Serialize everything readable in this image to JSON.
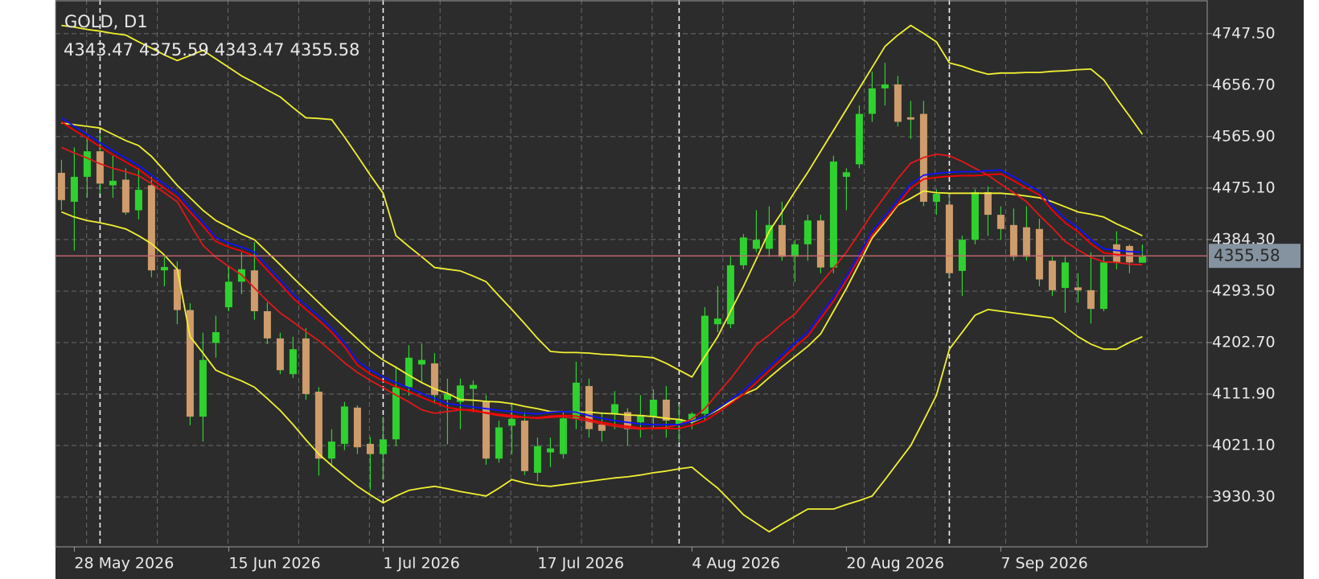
{
  "chart_data": {
    "type": "candlestick",
    "title": "GOLD, D1",
    "categories": [
      null,
      "28 May 2026",
      null,
      null,
      null,
      null,
      null,
      null,
      null,
      null,
      null,
      null,
      null,
      "15 Jun 2026",
      null,
      null,
      null,
      null,
      null,
      null,
      null,
      null,
      null,
      null,
      null,
      "1 Jul 2026",
      null,
      null,
      null,
      null,
      null,
      null,
      null,
      null,
      null,
      null,
      null,
      "17 Jul 2026",
      null,
      null,
      null,
      null,
      null,
      null,
      null,
      null,
      null,
      null,
      null,
      "4 Aug 2026",
      null,
      null,
      null,
      null,
      null,
      null,
      null,
      null,
      null,
      null,
      null,
      "20 Aug 2026",
      null,
      null,
      null,
      null,
      null,
      null,
      null,
      null,
      null,
      null,
      null,
      "7 Sep 2026",
      null,
      null,
      null,
      null,
      null,
      null,
      null,
      null,
      null,
      null,
      null
    ],
    "open": [
      4502,
      4451,
      4495,
      4540,
      4480,
      4490,
      4436,
      4480,
      4330,
      4332,
      4260,
      4072,
      4202,
      4265,
      4310,
      4330,
      4258,
      4210,
      4147,
      4210,
      4116,
      3998,
      4024,
      4088,
      4024,
      4006,
      4032,
      4124,
      4164,
      4166,
      4102,
      4098,
      4121,
      4098,
      3998,
      4056,
      4065,
      3973,
      4009,
      4006,
      4069,
      4126,
      4058,
      4077,
      4080,
      4062,
      4072,
      4102,
      4058,
      4065,
      4077,
      4235,
      4235,
      4339,
      4368,
      4368,
      4410,
      4354,
      4376,
      4418,
      4335,
      4495,
      4517,
      4606,
      4651,
      4658,
      4600,
      4606,
      4451,
      4446,
      4329,
      4384,
      4468,
      4428,
      4410,
      4406,
      4403,
      4347,
      4299,
      4300,
      4295,
      4262,
      4376,
      4373,
      4343.47
    ],
    "high": [
      4525,
      4547,
      4562,
      4570,
      4532,
      4510,
      4510,
      4495,
      4354,
      4346,
      4272,
      4220,
      4250,
      4339,
      4362,
      4380,
      4273,
      4220,
      4213,
      4228,
      4124,
      4050,
      4098,
      4092,
      4036,
      4072,
      4161,
      4198,
      4201,
      4184,
      4139,
      4139,
      4136,
      4110,
      4065,
      4094,
      4080,
      4035,
      4035,
      4080,
      4169,
      4139,
      4080,
      4117,
      4087,
      4110,
      4120,
      4126,
      4094,
      4080,
      4265,
      4302,
      4354,
      4394,
      4436,
      4443,
      4451,
      4384,
      4428,
      4428,
      4532,
      4510,
      4621,
      4681,
      4696,
      4673,
      4629,
      4629,
      4473,
      4466,
      4391,
      4473,
      4478,
      4443,
      4439,
      4443,
      4421,
      4354,
      4354,
      4325,
      4362,
      4354,
      4399,
      4376,
      4375.59
    ],
    "low": [
      4436,
      4365,
      4458,
      4465,
      4458,
      4428,
      4420,
      4318,
      4302,
      4235,
      4057,
      4028,
      4176,
      4258,
      4288,
      4243,
      4200,
      4147,
      4140,
      4102,
      3968,
      3983,
      4013,
      4006,
      3943,
      3961,
      4020,
      4109,
      4132,
      4095,
      4023,
      4050,
      4080,
      3987,
      3991,
      4006,
      3969,
      3958,
      3983,
      3998,
      4050,
      4035,
      4028,
      4050,
      4021,
      4035,
      4050,
      4035,
      4028,
      4050,
      4065,
      4221,
      4228,
      4332,
      4362,
      4354,
      4347,
      4310,
      4347,
      4325,
      4325,
      4436,
      4510,
      4592,
      4621,
      4584,
      4562,
      4443,
      4428,
      4317,
      4285,
      4376,
      4391,
      4384,
      4347,
      4347,
      4302,
      4285,
      4255,
      4273,
      4236,
      4258,
      4332,
      4325,
      4343.47
    ],
    "close": [
      4454,
      4495,
      4540,
      4483,
      4488,
      4432,
      4472,
      4330,
      4336,
      4260,
      4072,
      4172,
      4221,
      4310,
      4332,
      4258,
      4210,
      4154,
      4191,
      4112,
      3998,
      4028,
      4090,
      4018,
      4006,
      4032,
      4124,
      4176,
      4172,
      4110,
      4112,
      4127,
      4128,
      3998,
      4053,
      4068,
      3976,
      4020,
      4016,
      4069,
      4132,
      4050,
      4047,
      4094,
      4050,
      4075,
      4102,
      4065,
      4068,
      4077,
      4250,
      4245,
      4339,
      4388,
      4384,
      4410,
      4354,
      4376,
      4418,
      4335,
      4522,
      4503,
      4606,
      4651,
      4658,
      4592,
      4596,
      4451,
      4465,
      4325,
      4384,
      4468,
      4428,
      4403,
      4354,
      4354,
      4314,
      4295,
      4344,
      4295,
      4262,
      4344,
      4344,
      4344,
      4355.58
    ],
    "up_color": "#2fd12f",
    "down_color": "#cf9c6c",
    "wick_color": "#2fd12f",
    "price_line_color": "#c86a72",
    "series": [
      {
        "color": "#f0f032",
        "values": [
          4762,
          4759,
          4755,
          4752,
          4748,
          4745,
          4733,
          4722,
          4710,
          4700,
          4709,
          4718,
          4703,
          4688,
          4673,
          4661,
          4648,
          4636,
          4617,
          4599,
          4598,
          4596,
          4565,
          4532,
          4498,
          4466,
          4391,
          4372,
          4354,
          4335,
          4332,
          4329,
          4320,
          4310,
          4285,
          4261,
          4236,
          4210,
          4187,
          4185,
          4185,
          4184,
          4182,
          4181,
          4179,
          4178,
          4176,
          4166,
          4154,
          4142,
          4178,
          4213,
          4258,
          4302,
          4350,
          4399,
          4433,
          4469,
          4503,
          4540,
          4577,
          4614,
          4651,
          4688,
          4725,
          4745,
          4762,
          4748,
          4733,
          4696,
          4690,
          4682,
          4676,
          4678,
          4678,
          4679,
          4679,
          4681,
          4682,
          4684,
          4685,
          4666,
          4633,
          4602,
          4570
        ]
      },
      {
        "color": "#f0f032",
        "values": [
          4433,
          4424,
          4418,
          4414,
          4409,
          4403,
          4391,
          4377,
          4357,
          4332,
          4213,
          4184,
          4154,
          4144,
          4135,
          4124,
          4104,
          4083,
          4058,
          4031,
          4006,
          3986,
          3967,
          3949,
          3934,
          3920,
          3932,
          3942,
          3946,
          3949,
          3945,
          3940,
          3936,
          3932,
          3946,
          3961,
          3955,
          3951,
          3949,
          3952,
          3955,
          3958,
          3961,
          3964,
          3966,
          3969,
          3973,
          3976,
          3980,
          3983,
          3964,
          3946,
          3923,
          3899,
          3884,
          3869,
          3883,
          3896,
          3909,
          3909,
          3909,
          3917,
          3924,
          3932,
          3961,
          3991,
          4021,
          4065,
          4110,
          4191,
          4221,
          4251,
          4261,
          4258,
          4255,
          4252,
          4249,
          4246,
          4230,
          4213,
          4200,
          4191,
          4191,
          4203,
          4213
        ]
      },
      {
        "color": "#f0f032",
        "values": [
          4590,
          4587,
          4584,
          4581,
          4570,
          4559,
          4550,
          4531,
          4506,
          4480,
          4458,
          4436,
          4418,
          4406,
          4394,
          4384,
          4362,
          4340,
          4317,
          4295,
          4273,
          4251,
          4230,
          4209,
          4188,
          4172,
          4159,
          4145,
          4132,
          4121,
          4113,
          4102,
          4101,
          4099,
          4098,
          4095,
          4090,
          4086,
          4081,
          4081,
          4080,
          4080,
          4078,
          4077,
          4075,
          4074,
          4072,
          4069,
          4067,
          4062,
          4072,
          4084,
          4098,
          4111,
          4121,
          4141,
          4160,
          4178,
          4196,
          4218,
          4258,
          4298,
          4342,
          4387,
          4415,
          4445,
          4457,
          4470,
          4467,
          4466,
          4466,
          4466,
          4466,
          4466,
          4464,
          4461,
          4458,
          4451,
          4442,
          4433,
          4429,
          4424,
          4412,
          4402,
          4391
        ]
      },
      {
        "color": "#e01818",
        "values": [
          4547,
          4537,
          4528,
          4518,
          4510,
          4504,
          4497,
          4483,
          4467,
          4451,
          4412,
          4374,
          4353,
          4337,
          4322,
          4299,
          4276,
          4255,
          4239,
          4222,
          4206,
          4187,
          4167,
          4150,
          4136,
          4123,
          4110,
          4098,
          4084,
          4078,
          4081,
          4084,
          4084,
          4078,
          4074,
          4071,
          4071,
          4069,
          4071,
          4072,
          4068,
          4064,
          4059,
          4055,
          4052,
          4050,
          4052,
          4053,
          4058,
          4068,
          4086,
          4113,
          4139,
          4169,
          4199,
          4216,
          4236,
          4253,
          4280,
          4307,
          4334,
          4362,
          4396,
          4430,
          4461,
          4492,
          4519,
          4529,
          4535,
          4532,
          4522,
          4510,
          4498,
          4482,
          4467,
          4451,
          4427,
          4405,
          4381,
          4366,
          4353,
          4345,
          4344,
          4341,
          4340
        ]
      },
      {
        "color": "#ff0000",
        "values": [
          4592,
          4577,
          4563,
          4548,
          4534,
          4521,
          4508,
          4491,
          4475,
          4459,
          4433,
          4408,
          4381,
          4371,
          4364,
          4355,
          4330,
          4306,
          4281,
          4261,
          4242,
          4221,
          4195,
          4163,
          4147,
          4135,
          4125,
          4116,
          4106,
          4097,
          4088,
          4085,
          4082,
          4079,
          4076,
          4074,
          4071,
          4070,
          4073,
          4074,
          4073,
          4067,
          4062,
          4058,
          4055,
          4052,
          4051,
          4051,
          4051,
          4057,
          4065,
          4079,
          4095,
          4111,
          4132,
          4153,
          4174,
          4195,
          4214,
          4245,
          4276,
          4312,
          4352,
          4392,
          4419,
          4447,
          4475,
          4491,
          4494,
          4496,
          4497,
          4497,
          4499,
          4500,
          4488,
          4475,
          4463,
          4436,
          4414,
          4398,
          4377,
          4361,
          4358,
          4356,
          4355
        ]
      },
      {
        "color": "#1010ff",
        "values": [
          4599,
          4584,
          4570,
          4555,
          4541,
          4528,
          4515,
          4498,
          4482,
          4466,
          4440,
          4415,
          4388,
          4378,
          4371,
          4362,
          4337,
          4313,
          4288,
          4268,
          4249,
          4228,
          4202,
          4170,
          4154,
          4142,
          4132,
          4123,
          4113,
          4104,
          4095,
          4092,
          4089,
          4086,
          4083,
          4081,
          4078,
          4077,
          4080,
          4081,
          4080,
          4074,
          4069,
          4065,
          4062,
          4059,
          4058,
          4058,
          4058,
          4064,
          4072,
          4086,
          4102,
          4118,
          4139,
          4160,
          4181,
          4202,
          4221,
          4252,
          4283,
          4319,
          4359,
          4399,
          4426,
          4454,
          4482,
          4498,
          4501,
          4503,
          4504,
          4504,
          4506,
          4507,
          4495,
          4482,
          4470,
          4443,
          4421,
          4405,
          4384,
          4368,
          4365,
          4363,
          4362
        ]
      }
    ],
    "ylim": [
      3842.4,
      4806.85
    ],
    "yticks": [
      {
        "value": 4747.5,
        "label": "4747.50"
      },
      {
        "value": 4656.7,
        "label": "4656.70"
      },
      {
        "value": 4565.9,
        "label": "4565.90"
      },
      {
        "value": 4475.1,
        "label": "4475.10"
      },
      {
        "value": 4384.3,
        "label": "4384.30"
      },
      {
        "value": 4293.5,
        "label": "4293.50"
      },
      {
        "value": 4202.7,
        "label": "4202.70"
      },
      {
        "value": 4111.9,
        "label": "4111.90"
      },
      {
        "value": 4021.1,
        "label": "4021.10"
      },
      {
        "value": 3930.3,
        "label": "3930.30"
      }
    ],
    "grid": true
  }
}
